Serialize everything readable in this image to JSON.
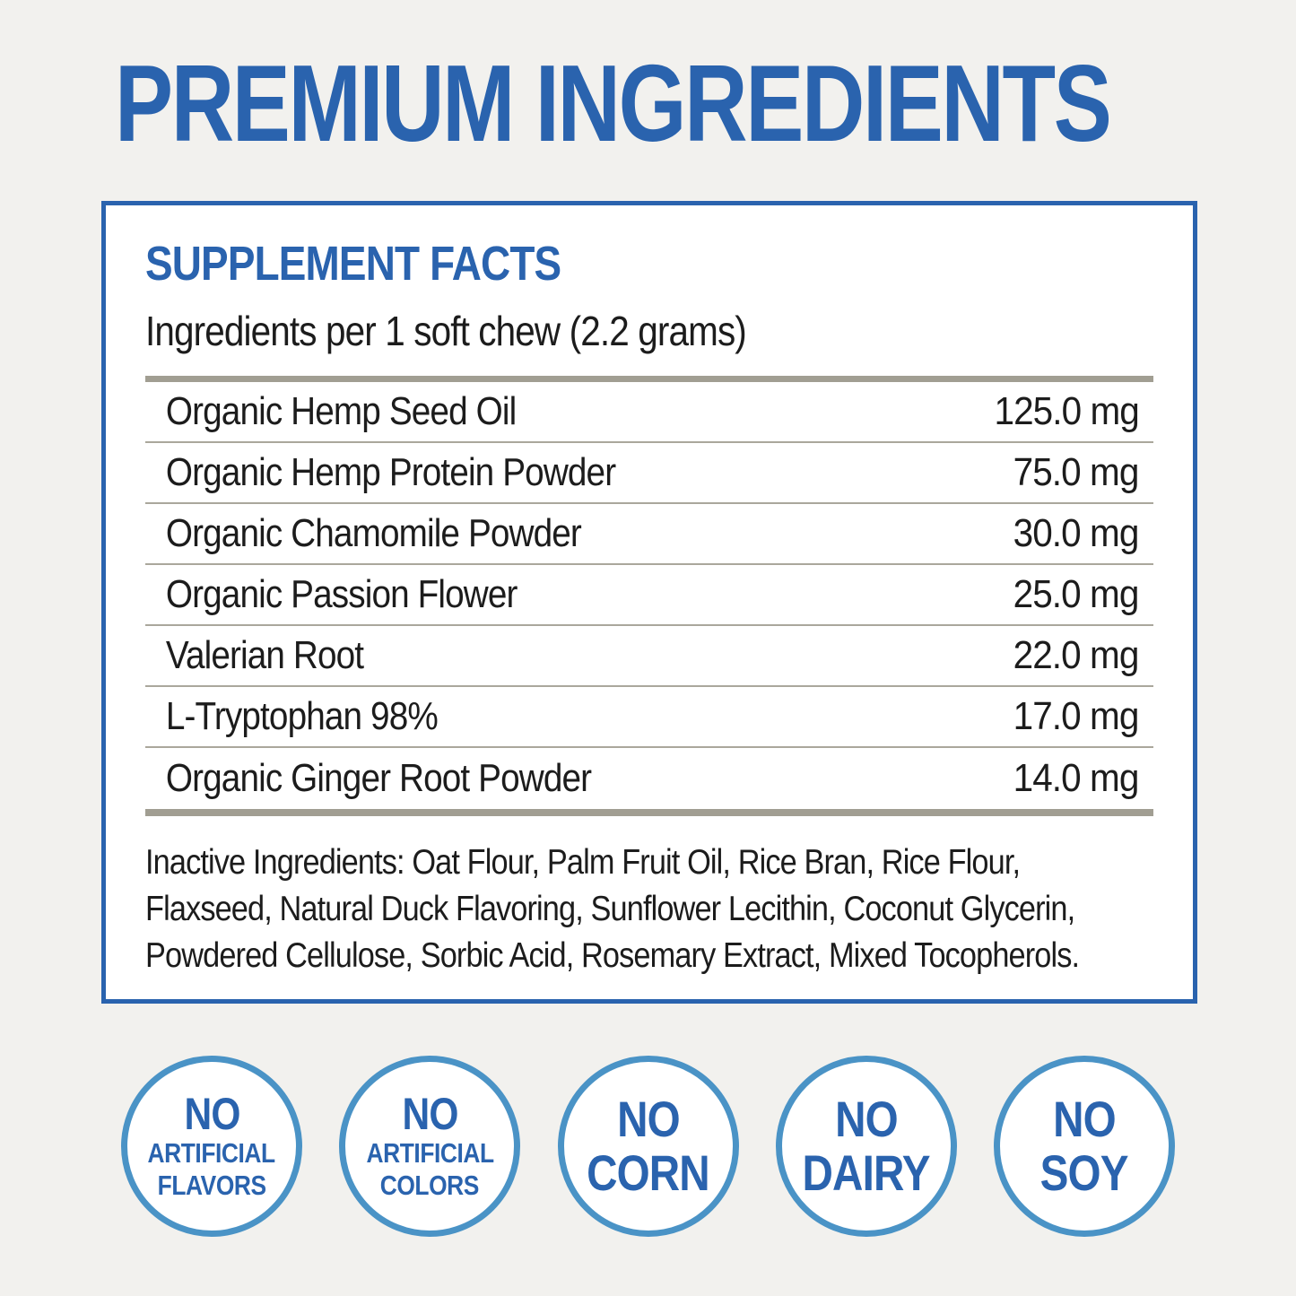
{
  "title": "PREMIUM INGREDIENTS",
  "colors": {
    "accent_blue": "#2a63ae",
    "badge_border_blue": "#4a93c6",
    "rule_gray": "#a19e92",
    "background": "#f2f1ee",
    "panel_background": "#ffffff",
    "text_black": "#1c1c1c"
  },
  "facts": {
    "heading": "SUPPLEMENT FACTS",
    "serving_line": "Ingredients per 1 soft chew (2.2 grams)",
    "ingredients": [
      {
        "name": "Organic Hemp Seed Oil",
        "amount": "125.0 mg"
      },
      {
        "name": "Organic Hemp Protein Powder",
        "amount": "75.0 mg"
      },
      {
        "name": "Organic Chamomile Powder",
        "amount": "30.0 mg"
      },
      {
        "name": "Organic Passion Flower",
        "amount": "25.0 mg"
      },
      {
        "name": "Valerian Root",
        "amount": "22.0 mg"
      },
      {
        "name": "L-Tryptophan 98%",
        "amount": "17.0 mg"
      },
      {
        "name": "Organic Ginger Root Powder",
        "amount": "14.0 mg"
      }
    ],
    "inactive_lines": [
      "Inactive Ingredients: Oat Flour, Palm Fruit Oil, Rice Bran, Rice Flour,",
      "Flaxseed, Natural Duck Flavoring, Sunflower Lecithin, Coconut Glycerin,",
      "Powdered Cellulose, Sorbic Acid, Rosemary Extract, Mixed Tocopherols."
    ]
  },
  "badges": [
    {
      "lines": [
        "NO",
        "ARTIFICIAL",
        "FLAVORS"
      ]
    },
    {
      "lines": [
        "NO",
        "ARTIFICIAL",
        "COLORS"
      ]
    },
    {
      "lines": [
        "NO",
        "CORN"
      ]
    },
    {
      "lines": [
        "NO",
        "DAIRY"
      ]
    },
    {
      "lines": [
        "NO",
        "SOY"
      ]
    }
  ]
}
